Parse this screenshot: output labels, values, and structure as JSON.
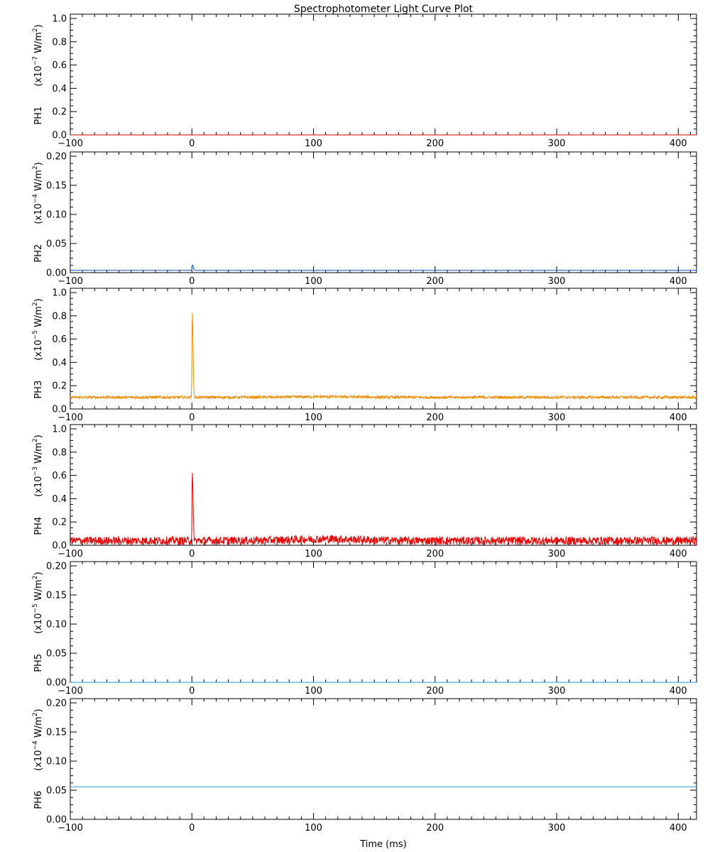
{
  "chart_data": {
    "type": "line",
    "title": "Spectrophotometer Light Curve Plot",
    "xlabel": "Time (ms)",
    "xlim": [
      -100,
      415
    ],
    "x_ticks": [
      -100,
      0,
      100,
      200,
      300,
      400
    ],
    "x_tick_labels": [
      "−100",
      "0",
      "100",
      "200",
      "300",
      "400"
    ],
    "grid": false,
    "panels": [
      {
        "channel": "PH1",
        "unit_label": "(x10",
        "unit_exp": "−7",
        "unit_tail": " W/m",
        "unit_sq": "2",
        "unit_close": ")",
        "ylim": [
          0,
          1.0
        ],
        "y_ticks": [
          0.0,
          0.2,
          0.4,
          0.6,
          0.8,
          1.0
        ],
        "y_tick_labels": [
          "0.0",
          "0.2",
          "0.4",
          "0.6",
          "0.8",
          "1.0"
        ],
        "series": [
          {
            "color": "#cc0000",
            "baseline": 0.0,
            "noise": 0.0,
            "peak": 0.0,
            "peak_t": 0.5
          }
        ]
      },
      {
        "channel": "PH2",
        "unit_label": "(x10",
        "unit_exp": "−4",
        "unit_tail": " W/m",
        "unit_sq": "2",
        "unit_close": ")",
        "ylim": [
          0,
          0.2
        ],
        "y_ticks": [
          0.0,
          0.05,
          0.1,
          0.15,
          0.2
        ],
        "y_tick_labels": [
          "0.00",
          "0.05",
          "0.10",
          "0.15",
          "0.20"
        ],
        "series": [
          {
            "color": "#1f5fd0",
            "baseline": 0.004,
            "noise": 0.0003,
            "peak": 0.014,
            "peak_t": 0.5
          }
        ]
      },
      {
        "channel": "PH3",
        "unit_label": "(x10",
        "unit_exp": "−5",
        "unit_tail": " W/m",
        "unit_sq": "2",
        "unit_close": ")",
        "ylim": [
          0,
          1.0
        ],
        "y_ticks": [
          0.0,
          0.2,
          0.4,
          0.6,
          0.8,
          1.0
        ],
        "y_tick_labels": [
          "0.0",
          "0.2",
          "0.4",
          "0.6",
          "0.8",
          "1.0"
        ],
        "series": [
          {
            "color": "#f08a00",
            "baseline": 0.1,
            "noise": 0.012,
            "peak": 0.85,
            "peak_t": 0.3
          }
        ]
      },
      {
        "channel": "PH4",
        "unit_label": "(x10",
        "unit_exp": "−3",
        "unit_tail": " W/m",
        "unit_sq": "2",
        "unit_close": ")",
        "ylim": [
          0,
          1.0
        ],
        "y_ticks": [
          0.0,
          0.2,
          0.4,
          0.6,
          0.8,
          1.0
        ],
        "y_tick_labels": [
          "0.0",
          "0.2",
          "0.4",
          "0.6",
          "0.8",
          "1.0"
        ],
        "series": [
          {
            "color": "#ee0000",
            "baseline": 0.04,
            "noise": 0.035,
            "peak": 0.61,
            "peak_t": 0.3
          }
        ]
      },
      {
        "channel": "PH5",
        "unit_label": "(x10",
        "unit_exp": "−5",
        "unit_tail": " W/m",
        "unit_sq": "2",
        "unit_close": ")",
        "ylim": [
          0,
          0.2
        ],
        "y_ticks": [
          0.0,
          0.05,
          0.1,
          0.15,
          0.2
        ],
        "y_tick_labels": [
          "0.00",
          "0.05",
          "0.10",
          "0.15",
          "0.20"
        ],
        "series": [
          {
            "color": "#1f9ad6",
            "baseline": 0.0,
            "noise": 0.0,
            "peak": 0.0,
            "peak_t": 0.5
          }
        ]
      },
      {
        "channel": "PH6",
        "unit_label": "(x10",
        "unit_exp": "−4",
        "unit_tail": " W/m",
        "unit_sq": "2",
        "unit_close": ")",
        "ylim": [
          0,
          0.2
        ],
        "y_ticks": [
          0.0,
          0.05,
          0.1,
          0.15,
          0.2
        ],
        "y_tick_labels": [
          "0.00",
          "0.05",
          "0.10",
          "0.15",
          "0.20"
        ],
        "series": [
          {
            "color": "#1f9ad6",
            "baseline": 0.056,
            "noise": 0.0,
            "peak": 0.0,
            "peak_t": 0.5
          }
        ]
      }
    ]
  }
}
